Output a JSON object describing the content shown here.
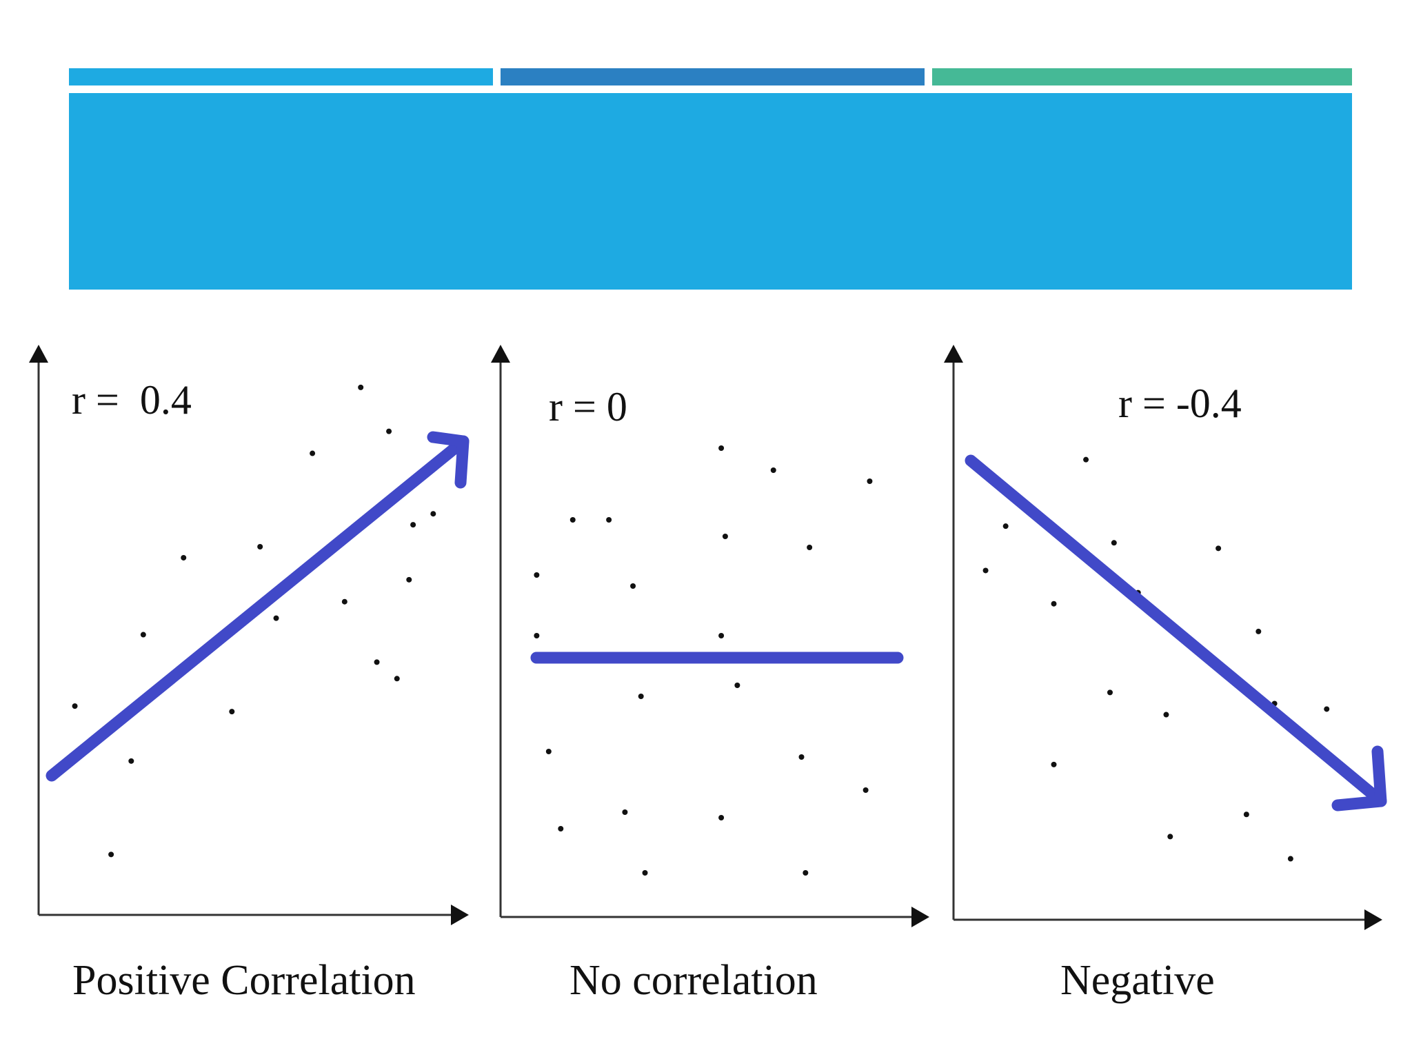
{
  "slide": {
    "accent_colors": [
      "#1eaae2",
      "#2b80c2",
      "#45b996"
    ],
    "title_band_color": "#1eaae2",
    "trend_color": "#4149c8",
    "axis_color": "#333333",
    "point_color": "#111111"
  },
  "chart_data": [
    {
      "type": "scatter",
      "r_label": "r =  0.4",
      "caption": "Positive Correlation",
      "trend": "increasing",
      "points": [
        [
          0.8,
          0.96
        ],
        [
          0.87,
          0.88
        ],
        [
          0.68,
          0.84
        ],
        [
          0.93,
          0.71
        ],
        [
          0.55,
          0.67
        ],
        [
          0.36,
          0.65
        ],
        [
          0.98,
          0.73
        ],
        [
          0.92,
          0.61
        ],
        [
          0.59,
          0.54
        ],
        [
          0.76,
          0.57
        ],
        [
          0.41,
          0.48
        ],
        [
          0.26,
          0.51
        ],
        [
          0.89,
          0.43
        ],
        [
          0.84,
          0.46
        ],
        [
          0.48,
          0.37
        ],
        [
          0.09,
          0.38
        ],
        [
          0.23,
          0.28
        ],
        [
          0.18,
          0.11
        ]
      ]
    },
    {
      "type": "scatter",
      "r_label": "r = 0",
      "caption": "No correlation",
      "trend": "flat",
      "points": [
        [
          0.55,
          0.85
        ],
        [
          0.68,
          0.81
        ],
        [
          0.92,
          0.79
        ],
        [
          0.27,
          0.72
        ],
        [
          0.18,
          0.72
        ],
        [
          0.56,
          0.69
        ],
        [
          0.77,
          0.67
        ],
        [
          0.09,
          0.62
        ],
        [
          0.33,
          0.6
        ],
        [
          0.09,
          0.51
        ],
        [
          0.55,
          0.51
        ],
        [
          0.59,
          0.42
        ],
        [
          0.35,
          0.4
        ],
        [
          0.12,
          0.3
        ],
        [
          0.75,
          0.29
        ],
        [
          0.91,
          0.23
        ],
        [
          0.31,
          0.19
        ],
        [
          0.15,
          0.16
        ],
        [
          0.55,
          0.18
        ],
        [
          0.36,
          0.08
        ],
        [
          0.76,
          0.08
        ]
      ]
    },
    {
      "type": "scatter",
      "r_label": "r = -0.4",
      "caption": "Negative",
      "trend": "decreasing",
      "points": [
        [
          0.33,
          0.83
        ],
        [
          0.13,
          0.71
        ],
        [
          0.24,
          0.71
        ],
        [
          0.4,
          0.68
        ],
        [
          0.66,
          0.67
        ],
        [
          0.08,
          0.63
        ],
        [
          0.46,
          0.59
        ],
        [
          0.25,
          0.57
        ],
        [
          0.76,
          0.52
        ],
        [
          0.39,
          0.41
        ],
        [
          0.53,
          0.37
        ],
        [
          0.8,
          0.39
        ],
        [
          0.93,
          0.38
        ],
        [
          0.25,
          0.28
        ],
        [
          0.73,
          0.19
        ],
        [
          0.54,
          0.15
        ],
        [
          0.84,
          0.11
        ]
      ]
    }
  ]
}
